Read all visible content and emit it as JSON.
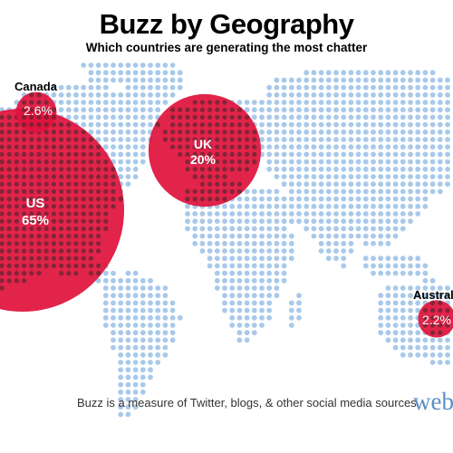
{
  "title": "Buzz by Geography",
  "subtitle": "Which countries are generating the most chatter",
  "footnote": "Buzz is a measure of Twitter, blogs, & other social media sources",
  "brand": "webt",
  "colors": {
    "bubble": "#e0123c",
    "dot": "#a9c9ea",
    "dot_dark": "#3a2a2a"
  },
  "chart_data": {
    "type": "bubble-map",
    "regions": [
      {
        "name": "US",
        "label": "US",
        "value_label": "65%",
        "value": 65
      },
      {
        "name": "UK",
        "label": "UK",
        "value_label": "20%",
        "value": 20
      },
      {
        "name": "Canada",
        "label": "Canada",
        "value_label": "2.6%",
        "value": 2.6
      },
      {
        "name": "Australia",
        "label": "Australi",
        "value_label": "2.2%",
        "value": 2.2
      }
    ]
  }
}
